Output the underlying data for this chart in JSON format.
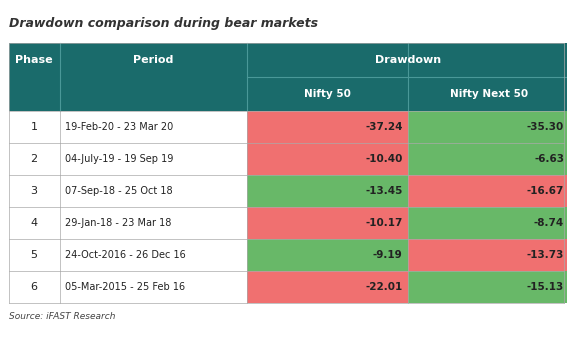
{
  "title": "Drawdown comparison during bear markets",
  "source": "Source: iFAST Research",
  "header_bg": "#1a6b6b",
  "header_text_color": "#ffffff",
  "col_phase": "Phase",
  "col_period": "Period",
  "col_drawdown": "Drawdown",
  "col_nifty50": "Nifty 50",
  "col_niftynext50": "Nifty Next 50",
  "phases": [
    1,
    2,
    3,
    4,
    5,
    6
  ],
  "periods": [
    "19-Feb-20 - 23 Mar 20",
    "04-July-19 - 19 Sep 19",
    "07-Sep-18 - 25 Oct 18",
    "29-Jan-18 - 23 Mar 18",
    "24-Oct-2016 - 26 Dec 16",
    "05-Mar-2015 - 25 Feb 16"
  ],
  "nifty50": [
    -37.24,
    -10.4,
    -13.45,
    -10.17,
    -9.19,
    -22.01
  ],
  "niftynext50": [
    -35.3,
    -6.63,
    -16.67,
    -8.74,
    -13.73,
    -15.13
  ],
  "red_color": "#f07070",
  "green_color": "#68b868",
  "white": "#ffffff",
  "border_color": "#aaaaaa",
  "header_sep_color": "#4a9898",
  "text_dark": "#222222",
  "title_color": "#333333",
  "source_color": "#444444"
}
